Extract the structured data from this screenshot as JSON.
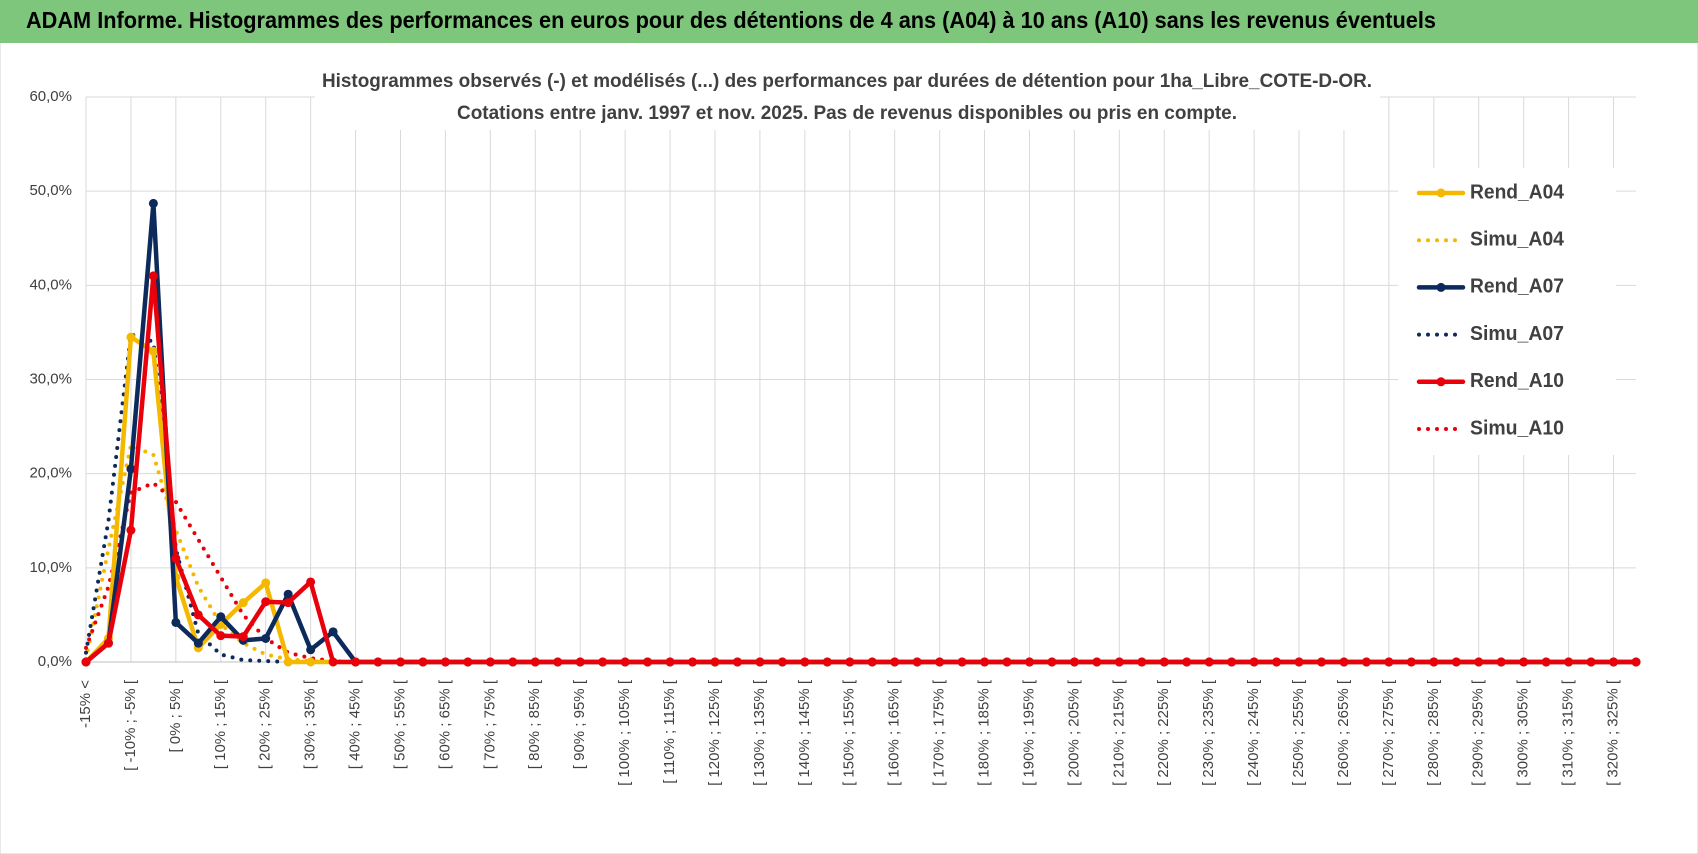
{
  "header": {
    "title": "ADAM Informe. Histogrammes des performances en euros pour des détentions de 4 ans (A04) à 10 ans (A10) sans les revenus éventuels"
  },
  "chart_data": {
    "type": "line",
    "title": "Histogrammes observés (-) et modélisés (...) des performances par durées de détention pour 1ha_Libre_COTE-D-OR.",
    "subtitle": "Cotations entre janv. 1997 et nov. 2025. Pas de revenus disponibles ou pris en compte.",
    "categories": [
      "-15% <",
      null,
      "[ -10% ; -5% [",
      null,
      "[ 0% ; 5% [",
      null,
      "[ 10% ; 15% [",
      null,
      "[ 20% ; 25% [",
      null,
      "[ 30% ; 35% [",
      null,
      "[ 40% ; 45% [",
      null,
      "[ 50% ; 55% [",
      null,
      "[ 60% ; 65% [",
      null,
      "[ 70% ; 75% [",
      null,
      "[ 80% ; 85% [",
      null,
      "[ 90% ; 95% [",
      null,
      "[ 100% ; 105% [",
      null,
      "[ 110% ; 115% [",
      null,
      "[ 120% ; 125% [",
      null,
      "[ 130% ; 135% [",
      null,
      "[ 140% ; 145% [",
      null,
      "[ 150% ; 155% [",
      null,
      "[ 160% ; 165% [",
      null,
      "[ 170% ; 175% [",
      null,
      "[ 180% ; 185% [",
      null,
      "[ 190% ; 195% [",
      null,
      "[ 200% ; 205% [",
      null,
      "[ 210% ; 215% [",
      null,
      "[ 220% ; 225% [",
      null,
      "[ 230% ; 235% [",
      null,
      "[ 240% ; 245% [",
      null,
      "[ 250% ; 255% [",
      null,
      "[ 260% ; 265% [",
      null,
      "[ 270% ; 275% [",
      null,
      "[ 280% ; 285% [",
      null,
      "[ 290% ; 295% [",
      null,
      "[ 300% ; 305% [",
      null,
      "[ 310% ; 315% [",
      null,
      "[ 320% ; 325% [",
      null
    ],
    "series": [
      {
        "name": "Rend_A04",
        "color": "#f5b800",
        "style": "solid",
        "markers": true,
        "values": [
          0,
          2.5,
          34.5,
          33,
          9,
          1.5,
          4,
          6.3,
          8.4,
          0,
          0,
          0,
          0,
          0,
          0,
          0,
          0,
          0,
          0,
          0,
          0,
          0,
          0,
          0,
          0,
          0,
          0,
          0,
          0,
          0,
          0,
          0,
          0,
          0,
          0,
          0,
          0,
          0,
          0,
          0,
          0,
          0,
          0,
          0,
          0,
          0,
          0,
          0,
          0,
          0,
          0,
          0,
          0,
          0,
          0,
          0,
          0,
          0,
          0,
          0,
          0,
          0,
          0,
          0,
          0,
          0,
          0,
          0,
          0,
          0
        ]
      },
      {
        "name": "Simu_A04",
        "color": "#f5b800",
        "style": "dotted",
        "markers": false,
        "values": [
          0.3,
          12,
          23,
          22,
          14,
          8,
          4,
          2,
          0.8,
          0.3,
          0.1,
          0,
          0,
          0,
          0,
          0,
          0,
          0,
          0,
          0,
          0,
          0,
          0,
          0,
          0,
          0,
          0,
          0,
          0,
          0,
          0,
          0,
          0,
          0,
          0,
          0,
          0,
          0,
          0,
          0,
          0,
          0,
          0,
          0,
          0,
          0,
          0,
          0,
          0,
          0,
          0,
          0,
          0,
          0,
          0,
          0,
          0,
          0,
          0,
          0,
          0,
          0,
          0,
          0,
          0,
          0,
          0,
          0,
          0,
          0
        ]
      },
      {
        "name": "Rend_A07",
        "color": "#0d2a5c",
        "style": "solid",
        "markers": true,
        "values": [
          0,
          2,
          20.5,
          48.7,
          4.2,
          2,
          4.8,
          2.3,
          2.5,
          7.2,
          1.3,
          3.2,
          0,
          0,
          0,
          0,
          0,
          0,
          0,
          0,
          0,
          0,
          0,
          0,
          0,
          0,
          0,
          0,
          0,
          0,
          0,
          0,
          0,
          0,
          0,
          0,
          0,
          0,
          0,
          0,
          0,
          0,
          0,
          0,
          0,
          0,
          0,
          0,
          0,
          0,
          0,
          0,
          0,
          0,
          0,
          0,
          0,
          0,
          0,
          0,
          0,
          0,
          0,
          0,
          0,
          0,
          0,
          0,
          0,
          0
        ]
      },
      {
        "name": "Simu_A07",
        "color": "#0d2a5c",
        "style": "dotted",
        "markers": false,
        "values": [
          1,
          15,
          34.8,
          34,
          12,
          3,
          0.8,
          0.2,
          0.1,
          0,
          0,
          0,
          0,
          0,
          0,
          0,
          0,
          0,
          0,
          0,
          0,
          0,
          0,
          0,
          0,
          0,
          0,
          0,
          0,
          0,
          0,
          0,
          0,
          0,
          0,
          0,
          0,
          0,
          0,
          0,
          0,
          0,
          0,
          0,
          0,
          0,
          0,
          0,
          0,
          0,
          0,
          0,
          0,
          0,
          0,
          0,
          0,
          0,
          0,
          0,
          0,
          0,
          0,
          0,
          0,
          0,
          0,
          0,
          0,
          0
        ]
      },
      {
        "name": "Rend_A10",
        "color": "#e8000b",
        "style": "solid",
        "markers": true,
        "values": [
          0,
          2,
          14,
          41,
          11,
          5,
          2.8,
          2.7,
          6.4,
          6.3,
          8.5,
          0,
          0,
          0,
          0,
          0,
          0,
          0,
          0,
          0,
          0,
          0,
          0,
          0,
          0,
          0,
          0,
          0,
          0,
          0,
          0,
          0,
          0,
          0,
          0,
          0,
          0,
          0,
          0,
          0,
          0,
          0,
          0,
          0,
          0,
          0,
          0,
          0,
          0,
          0,
          0,
          0,
          0,
          0,
          0,
          0,
          0,
          0,
          0,
          0,
          0,
          0,
          0,
          0,
          0,
          0,
          0,
          0,
          0,
          0
        ]
      },
      {
        "name": "Simu_A10",
        "color": "#e8000b",
        "style": "dotted",
        "markers": false,
        "values": [
          1.5,
          8,
          18,
          19,
          17,
          13,
          9,
          5,
          2.5,
          1,
          0.4,
          0.1,
          0,
          0,
          0,
          0,
          0,
          0,
          0,
          0,
          0,
          0,
          0,
          0,
          0,
          0,
          0,
          0,
          0,
          0,
          0,
          0,
          0,
          0,
          0,
          0,
          0,
          0,
          0,
          0,
          0,
          0,
          0,
          0,
          0,
          0,
          0,
          0,
          0,
          0,
          0,
          0,
          0,
          0,
          0,
          0,
          0,
          0,
          0,
          0,
          0,
          0,
          0,
          0,
          0,
          0,
          0,
          0,
          0,
          0
        ]
      }
    ],
    "ylim": [
      0,
      60
    ],
    "yticks": [
      {
        "value": 0,
        "label": "0,0%"
      },
      {
        "value": 10,
        "label": "10,0%"
      },
      {
        "value": 20,
        "label": "20,0%"
      },
      {
        "value": 30,
        "label": "30,0%"
      },
      {
        "value": 40,
        "label": "40,0%"
      },
      {
        "value": 50,
        "label": "50,0%"
      },
      {
        "value": 60,
        "label": "60,0%"
      }
    ],
    "grid": true,
    "legend": "right"
  }
}
